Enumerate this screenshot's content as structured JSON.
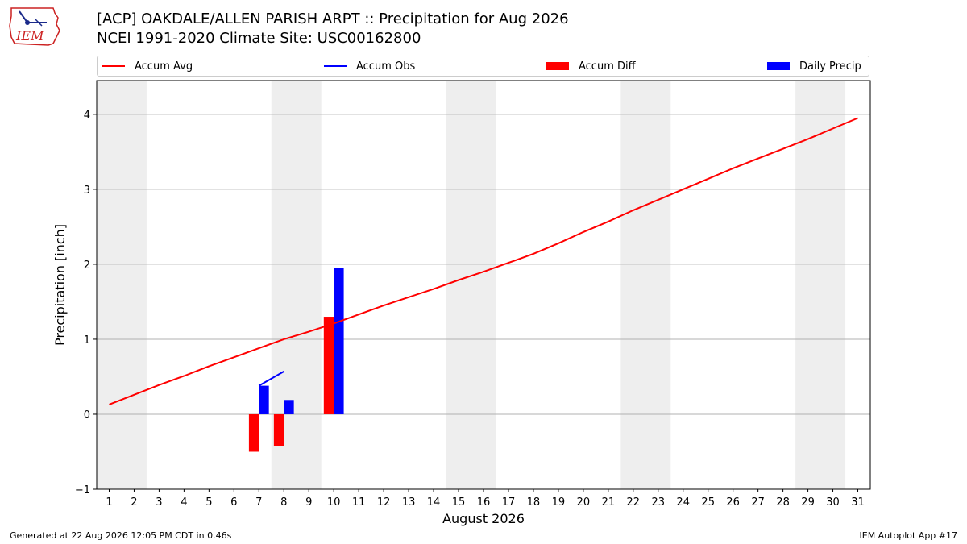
{
  "header": {
    "logo_text": "IEM",
    "title_line1": "[ACP] OAKDALE/ALLEN PARISH ARPT :: Precipitation for Aug 2026",
    "title_line2": "NCEI 1991-2020 Climate Site: USC00162800"
  },
  "legend": [
    {
      "label": "Accum Avg",
      "color": "#ff0000",
      "kind": "line"
    },
    {
      "label": "Accum Obs",
      "color": "#0000ff",
      "kind": "line"
    },
    {
      "label": "Accum Diff",
      "color": "#ff0000",
      "kind": "box"
    },
    {
      "label": "Daily Precip",
      "color": "#0000ff",
      "kind": "box"
    }
  ],
  "chart_data": {
    "type": "bar",
    "xlabel": "August 2026",
    "ylabel": "Precipitation [inch]",
    "x": [
      1,
      2,
      3,
      4,
      5,
      6,
      7,
      8,
      9,
      10,
      11,
      12,
      13,
      14,
      15,
      16,
      17,
      18,
      19,
      20,
      21,
      22,
      23,
      24,
      25,
      26,
      27,
      28,
      29,
      30,
      31
    ],
    "xlim": [
      0.5,
      31.5
    ],
    "ylim": [
      -1,
      4.45
    ],
    "yticks": [
      -1,
      0,
      1,
      2,
      3,
      4
    ],
    "ytick_labels": [
      "−1",
      "0",
      "1",
      "2",
      "3",
      "4"
    ],
    "grid": "horizontal",
    "weekend_shading": [
      [
        0.5,
        2.5
      ],
      [
        7.5,
        9.5
      ],
      [
        14.5,
        16.5
      ],
      [
        21.5,
        23.5
      ],
      [
        28.5,
        30.5
      ]
    ],
    "series": [
      {
        "name": "Accum Avg",
        "type": "line",
        "color": "#ff0000",
        "values": [
          0.13,
          0.26,
          0.39,
          0.51,
          0.64,
          0.76,
          0.88,
          1.0,
          1.1,
          1.21,
          1.33,
          1.45,
          1.56,
          1.67,
          1.79,
          1.9,
          2.02,
          2.14,
          2.28,
          2.43,
          2.57,
          2.72,
          2.86,
          3.0,
          3.14,
          3.28,
          3.41,
          3.54,
          3.67,
          3.81,
          3.95
        ]
      },
      {
        "name": "Accum Obs",
        "type": "line",
        "color": "#0000ff",
        "points": [
          [
            7,
            0.38
          ],
          [
            8,
            0.57
          ]
        ]
      },
      {
        "name": "Accum Diff",
        "type": "bar",
        "color": "#ff0000",
        "points": [
          [
            7,
            -0.5
          ],
          [
            8,
            -0.43
          ],
          [
            10,
            1.3
          ]
        ]
      },
      {
        "name": "Daily Precip",
        "type": "bar",
        "color": "#0000ff",
        "points": [
          [
            7,
            0.38
          ],
          [
            8,
            0.19
          ],
          [
            10,
            1.95
          ]
        ]
      }
    ]
  },
  "footer": {
    "left": "Generated at 22 Aug 2026 12:05 PM CDT in 0.46s",
    "right": "IEM Autoplot App #17"
  }
}
